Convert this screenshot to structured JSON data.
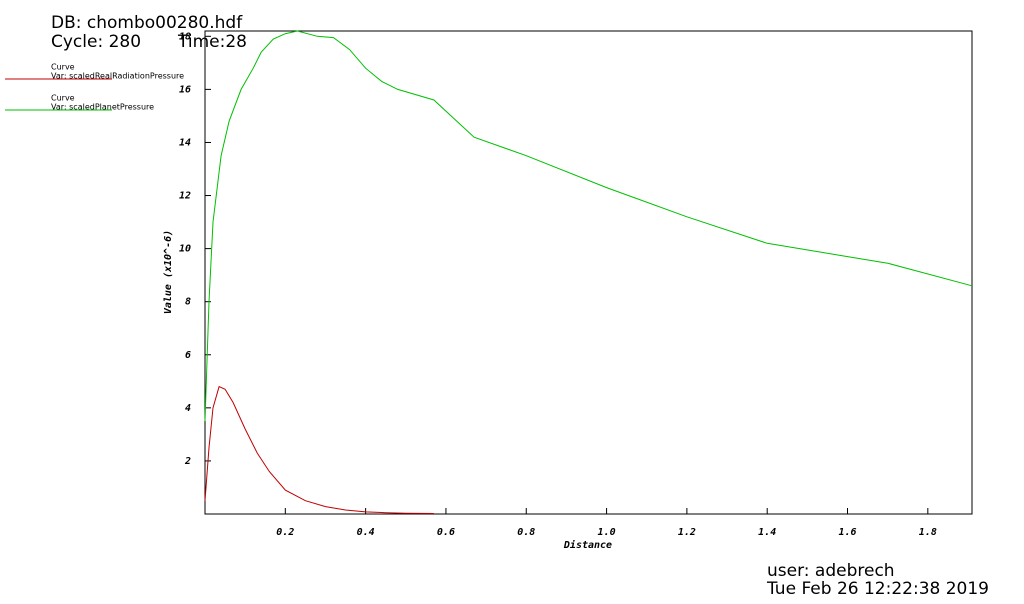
{
  "chart_data": {
    "type": "line",
    "db": "DB: chombo00280.hdf",
    "cycle": "Cycle: 280",
    "time": "Time:28",
    "xlabel": "Distance",
    "ylabel": "Value (x10^-6)",
    "user": "user: adebrech",
    "date": "Tue Feb 26 12:22:38 2019",
    "xlim": [
      0,
      1.91
    ],
    "ylim": [
      0,
      18.2
    ],
    "xticks": [
      0.2,
      0.4,
      0.6,
      0.8,
      {
        "value": 1,
        "label": "1.0"
      },
      1.2,
      1.4,
      1.6,
      1.8
    ],
    "yticks": [
      2,
      4,
      6,
      8,
      10,
      12,
      14,
      16,
      18
    ],
    "series": [
      {
        "label": "Curve",
        "name": "Var: scaledRealRadiationPressure",
        "color": "#c00000",
        "x": [
          0,
          0.01,
          0.02,
          0.035,
          0.05,
          0.07,
          0.1,
          0.13,
          0.16,
          0.2,
          0.25,
          0.3,
          0.35,
          0.4,
          0.45,
          0.5,
          0.57
        ],
        "values": [
          0.5,
          2.5,
          4,
          4.8,
          4.7,
          4.2,
          3.2,
          2.3,
          1.6,
          0.9,
          0.5,
          0.28,
          0.15,
          0.08,
          0.05,
          0.03,
          0.02
        ]
      },
      {
        "label": "Curve",
        "name": "Var: scaledPlanetPressure",
        "color": "#00c000",
        "x": [
          0,
          0.01,
          0.02,
          0.04,
          0.06,
          0.09,
          0.12,
          0.14,
          0.17,
          0.2,
          0.23,
          0.28,
          0.32,
          0.36,
          0.4,
          0.44,
          0.48,
          0.57,
          0.62,
          0.67,
          0.8,
          1.0,
          1.2,
          1.4,
          1.6,
          1.7,
          1.91
        ],
        "values": [
          3.5,
          8,
          11,
          13.5,
          14.8,
          16,
          16.8,
          17.4,
          17.9,
          18.1,
          18.2,
          18,
          17.95,
          17.5,
          16.8,
          16.3,
          16,
          15.6,
          14.9,
          14.2,
          13.5,
          12.3,
          11.2,
          10.2,
          9.7,
          9.45,
          8.6
        ]
      }
    ]
  }
}
